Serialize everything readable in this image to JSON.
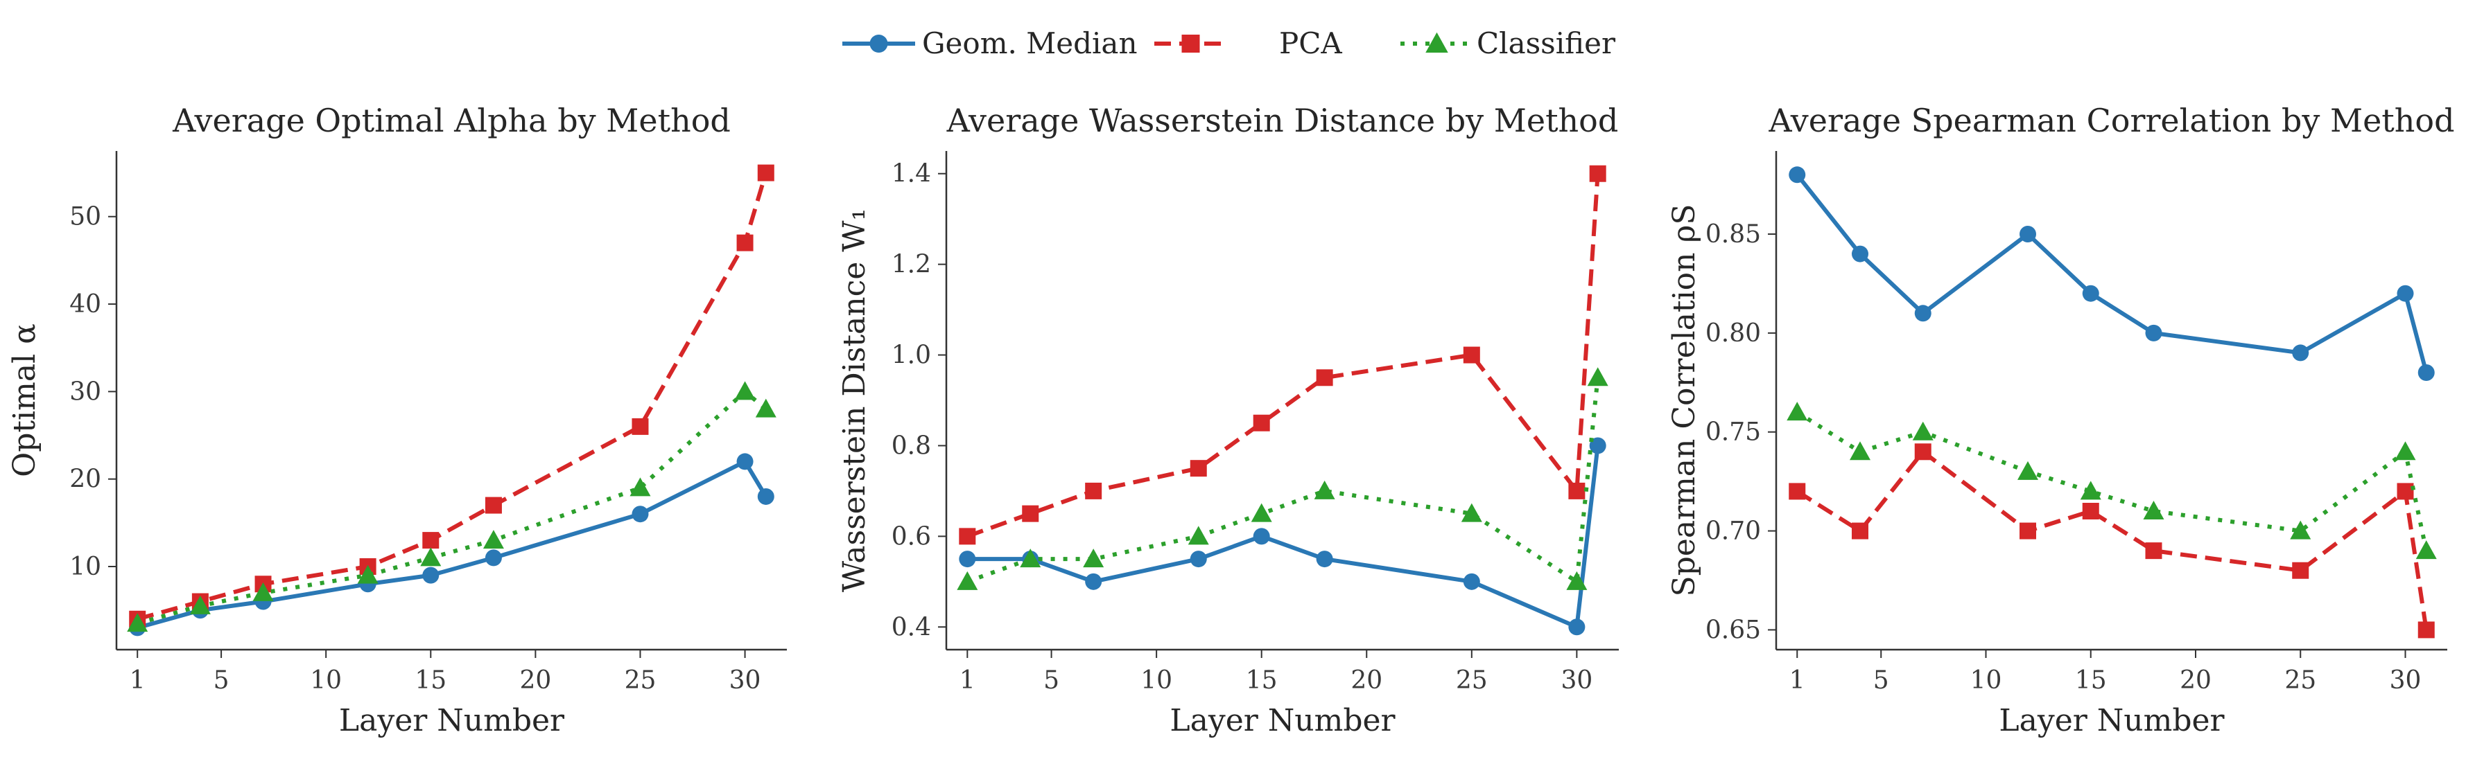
{
  "legend": {
    "placement": "top-center",
    "items": [
      {
        "name": "Geom. Median",
        "color": "#2a78b5",
        "marker": "circle",
        "line": "solid"
      },
      {
        "name": "PCA",
        "color": "#d62728",
        "marker": "square",
        "line": "dashed"
      },
      {
        "name": "Classifier",
        "color": "#2ca02c",
        "marker": "triangle",
        "line": "dotted"
      }
    ]
  },
  "chart_data": [
    {
      "type": "line",
      "title": "Average Optimal Alpha by Method",
      "xlabel": "Layer Number",
      "ylabel": "Optimal α",
      "x": [
        1,
        4,
        7,
        12,
        15,
        18,
        25,
        30,
        31
      ],
      "xticks": [
        1,
        5,
        10,
        15,
        20,
        25,
        30
      ],
      "xlim": [
        0,
        32
      ],
      "ylim": [
        0.5,
        57.5
      ],
      "yticks": [
        10,
        20,
        30,
        40,
        50
      ],
      "ytick_labels": [
        "10",
        "20",
        "30",
        "40",
        "50"
      ],
      "grid": false,
      "series": [
        {
          "name": "Geom. Median",
          "values": [
            3,
            5,
            6,
            8,
            9,
            11,
            16,
            22,
            18
          ]
        },
        {
          "name": "PCA",
          "values": [
            4,
            6,
            8,
            10,
            13,
            17,
            26,
            47,
            55
          ]
        },
        {
          "name": "Classifier",
          "values": [
            3.5,
            5.5,
            7,
            9,
            11,
            13,
            19,
            30,
            28
          ]
        }
      ]
    },
    {
      "type": "line",
      "title": "Average Wasserstein Distance by Method",
      "xlabel": "Layer Number",
      "ylabel": "Wasserstein Distance W₁",
      "x": [
        1,
        4,
        7,
        12,
        15,
        18,
        25,
        30,
        31
      ],
      "xticks": [
        1,
        5,
        10,
        15,
        20,
        25,
        30
      ],
      "xlim": [
        0,
        32
      ],
      "ylim": [
        0.35,
        1.45
      ],
      "yticks": [
        0.4,
        0.6,
        0.8,
        1.0,
        1.2,
        1.4
      ],
      "ytick_labels": [
        "0.4",
        "0.6",
        "0.8",
        "1.0",
        "1.2",
        "1.4"
      ],
      "grid": false,
      "series": [
        {
          "name": "Geom. Median",
          "values": [
            0.55,
            0.55,
            0.5,
            0.55,
            0.6,
            0.55,
            0.5,
            0.4,
            0.8
          ]
        },
        {
          "name": "PCA",
          "values": [
            0.6,
            0.65,
            0.7,
            0.75,
            0.85,
            0.95,
            1.0,
            0.7,
            1.4
          ]
        },
        {
          "name": "Classifier",
          "values": [
            0.5,
            0.55,
            0.55,
            0.6,
            0.65,
            0.7,
            0.65,
            0.5,
            0.95
          ]
        }
      ]
    },
    {
      "type": "line",
      "title": "Average Spearman Correlation by Method",
      "xlabel": "Layer Number",
      "ylabel": "Spearman Correlation ρS",
      "x": [
        1,
        4,
        7,
        12,
        15,
        18,
        25,
        30,
        31
      ],
      "xticks": [
        1,
        5,
        10,
        15,
        20,
        25,
        30
      ],
      "xlim": [
        0,
        32
      ],
      "ylim": [
        0.64,
        0.892
      ],
      "yticks": [
        0.65,
        0.7,
        0.75,
        0.8,
        0.85
      ],
      "ytick_labels": [
        "0.65",
        "0.70",
        "0.75",
        "0.80",
        "0.85"
      ],
      "grid": false,
      "series": [
        {
          "name": "Geom. Median",
          "values": [
            0.88,
            0.84,
            0.81,
            0.85,
            0.82,
            0.8,
            0.79,
            0.82,
            0.78
          ]
        },
        {
          "name": "PCA",
          "values": [
            0.72,
            0.7,
            0.74,
            0.7,
            0.71,
            0.69,
            0.68,
            0.72,
            0.65
          ]
        },
        {
          "name": "Classifier",
          "values": [
            0.76,
            0.74,
            0.75,
            0.73,
            0.72,
            0.71,
            0.7,
            0.74,
            0.69
          ]
        }
      ]
    }
  ]
}
